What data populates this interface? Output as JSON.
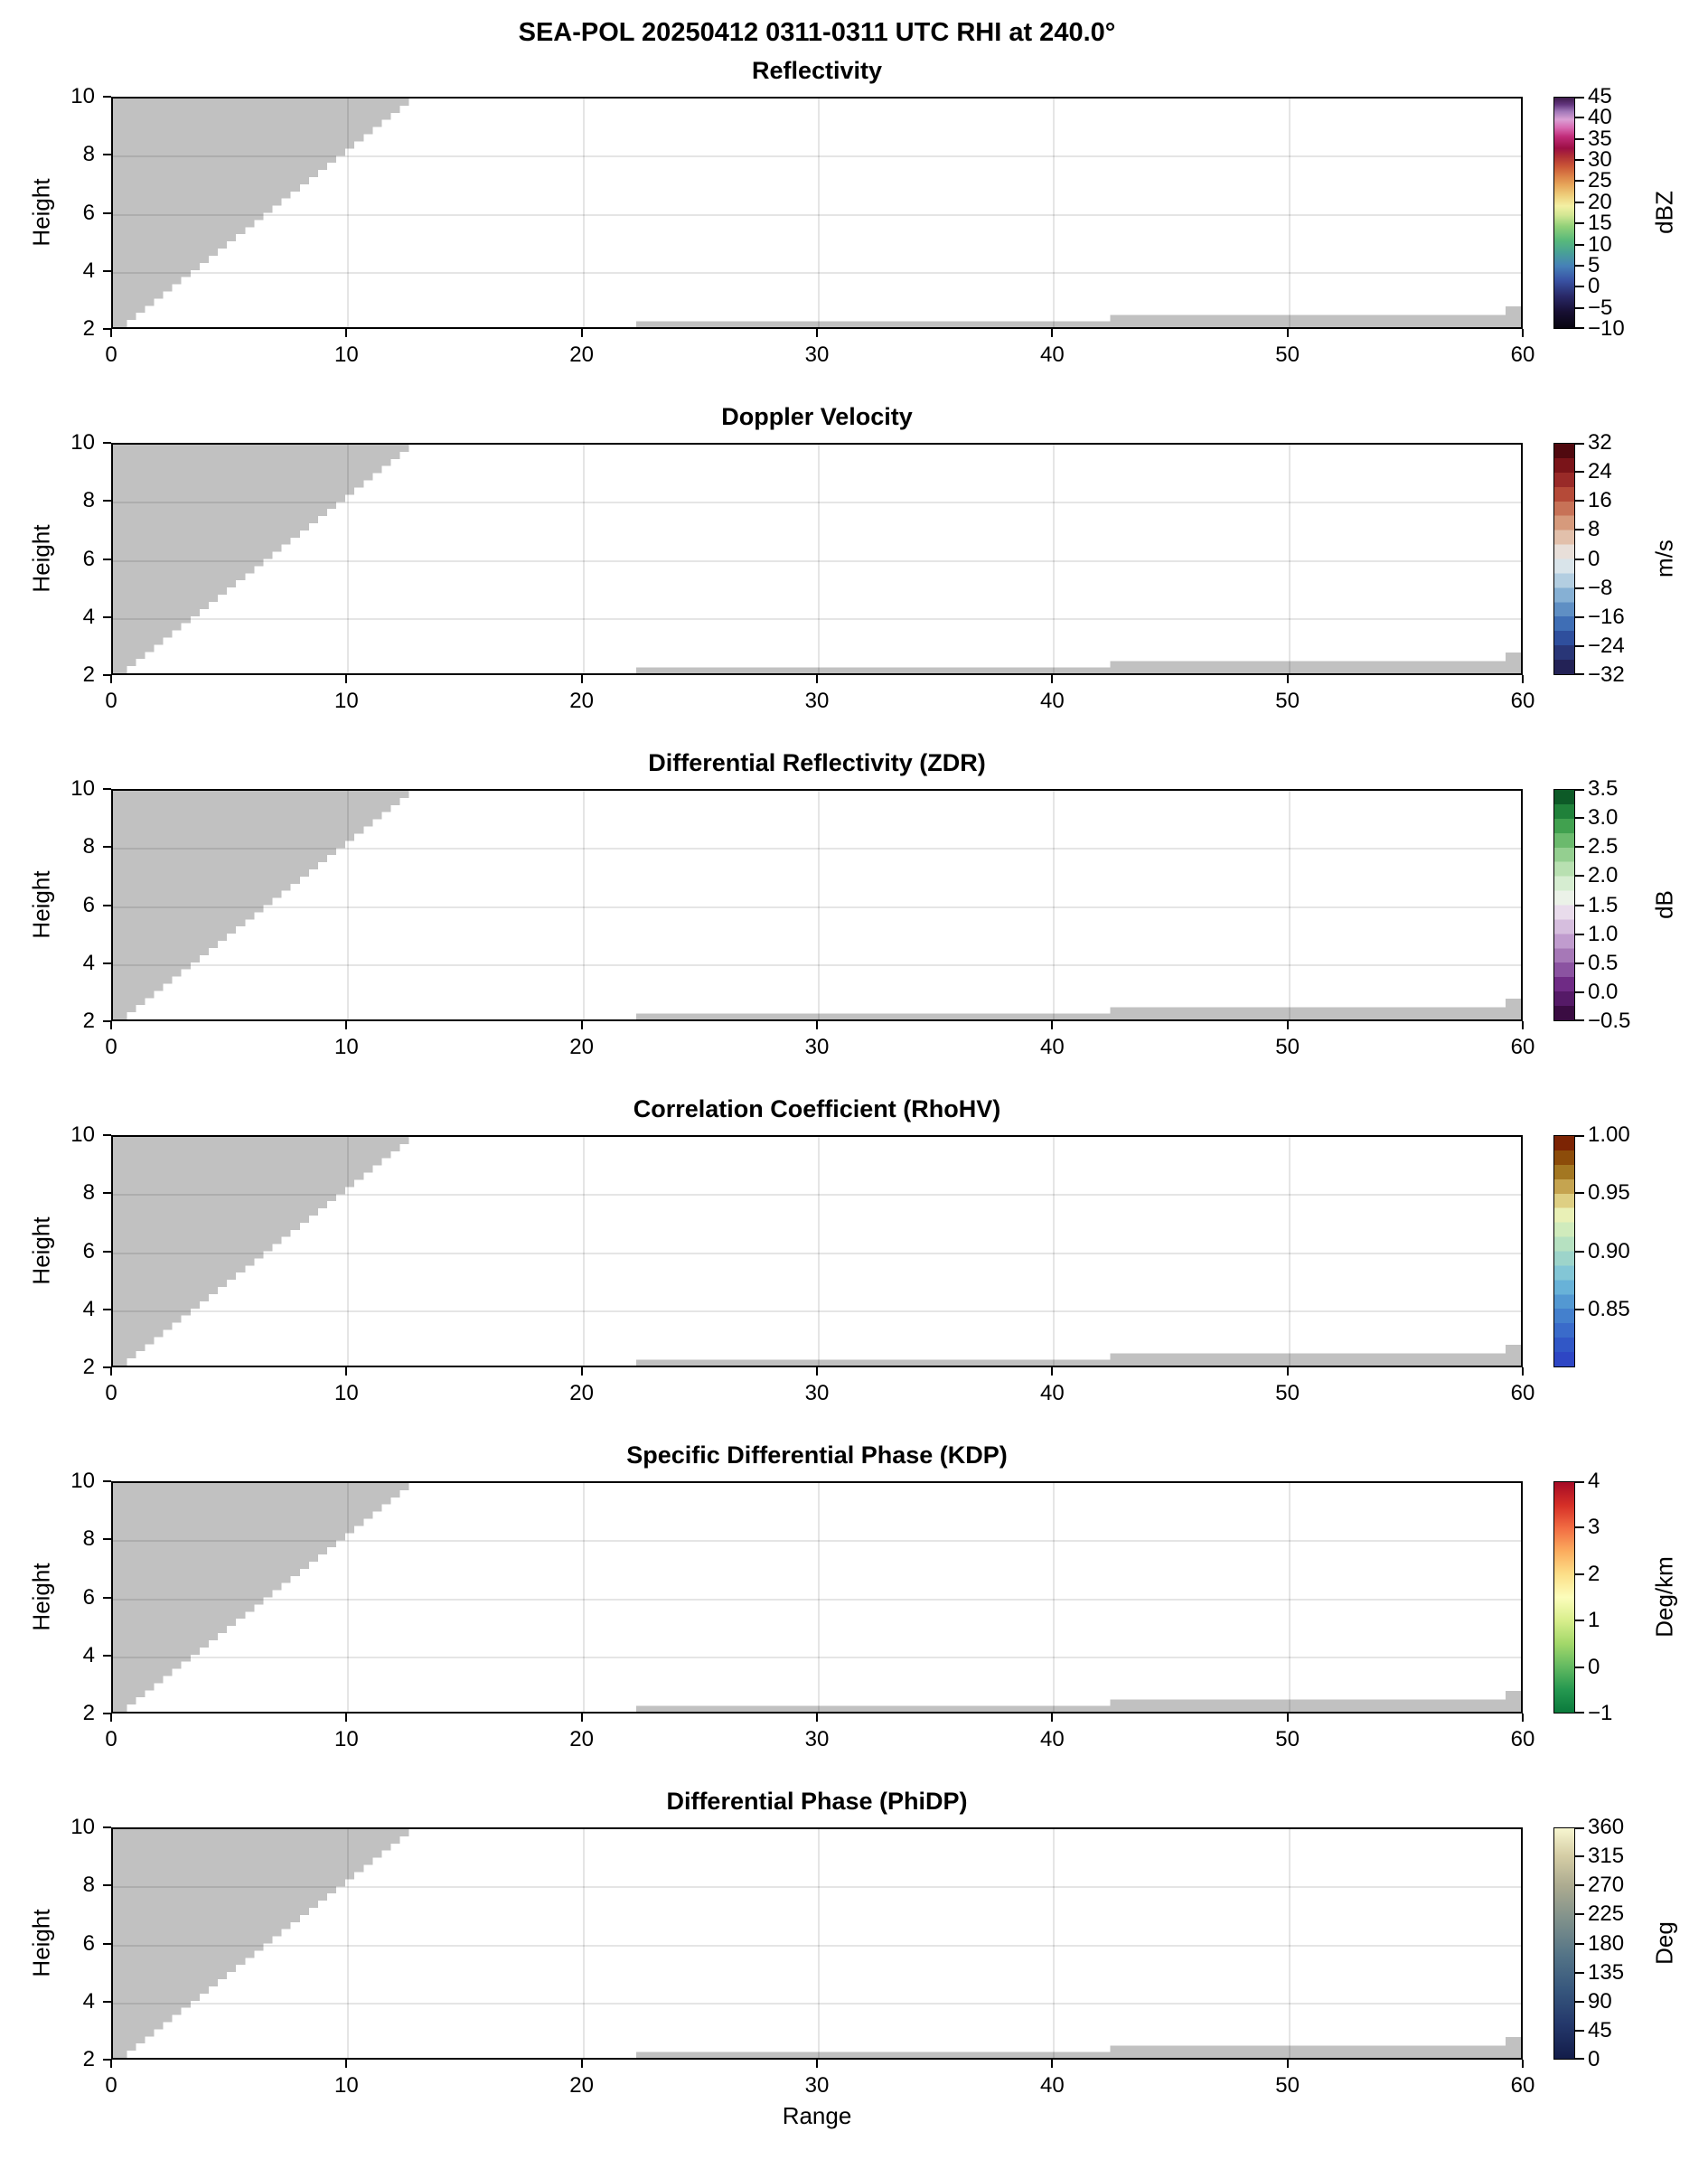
{
  "figure": {
    "title": "SEA-POL 20250412 0311-0311 UTC RHI at 240.0°",
    "xlabel": "Range",
    "ylabel": "Height"
  },
  "chart_data": {
    "type": "heatmap",
    "subtype": "radar-rhi-multipanel",
    "title": "SEA-POL 20250412 0311-0311 UTC RHI at 240.0°",
    "xlabel": "Range",
    "ylabel": "Height",
    "xlim": [
      0,
      60
    ],
    "ylim": [
      2,
      10
    ],
    "x_ticks": [
      0,
      10,
      20,
      30,
      40,
      50,
      60
    ],
    "y_ticks": [
      10,
      8,
      6,
      4,
      2
    ],
    "grid": true,
    "no_data_color": "#c1c1c1",
    "mask_regions": {
      "wedge": {
        "x_at_bottom": 0.2,
        "x_at_top": 12.62,
        "y_bottom": 2,
        "y_top": 10,
        "step": 0.25
      },
      "strips": [
        {
          "x0": 22.3,
          "x1": 42.5,
          "y0": 2,
          "y1": 2.2
        },
        {
          "x0": 42.5,
          "x1": 60.0,
          "y0": 2,
          "y1": 2.42
        },
        {
          "x0": 59.35,
          "x1": 60.0,
          "y0": 2,
          "y1": 2.72
        }
      ]
    },
    "panels": [
      {
        "title": "Reflectivity",
        "unit": "dBZ",
        "vmin": -10,
        "vmax": 45,
        "cb_ticks": [
          {
            "v": 45,
            "label": "45"
          },
          {
            "v": 40,
            "label": "40"
          },
          {
            "v": 35,
            "label": "35"
          },
          {
            "v": 30,
            "label": "30"
          },
          {
            "v": 25,
            "label": "25"
          },
          {
            "v": 20,
            "label": "20"
          },
          {
            "v": 15,
            "label": "15"
          },
          {
            "v": 10,
            "label": "10"
          },
          {
            "v": 5,
            "label": "5"
          },
          {
            "v": 0,
            "label": "0"
          },
          {
            "v": -5,
            "label": "−5"
          },
          {
            "v": -10,
            "label": "−10"
          }
        ],
        "cmap": {
          "style": "continuous",
          "stops": [
            {
              "p": 0.0,
              "c": "#08050f"
            },
            {
              "p": 0.07,
              "c": "#170f33"
            },
            {
              "p": 0.14,
              "c": "#292968"
            },
            {
              "p": 0.21,
              "c": "#3a54a6"
            },
            {
              "p": 0.27,
              "c": "#4681b8"
            },
            {
              "p": 0.33,
              "c": "#49a295"
            },
            {
              "p": 0.38,
              "c": "#58b97b"
            },
            {
              "p": 0.44,
              "c": "#90d078"
            },
            {
              "p": 0.49,
              "c": "#d2e793"
            },
            {
              "p": 0.53,
              "c": "#f3f0a3"
            },
            {
              "p": 0.575,
              "c": "#eecf7c"
            },
            {
              "p": 0.62,
              "c": "#e7a75b"
            },
            {
              "p": 0.66,
              "c": "#db8147"
            },
            {
              "p": 0.7,
              "c": "#cb5837"
            },
            {
              "p": 0.745,
              "c": "#b02f35"
            },
            {
              "p": 0.78,
              "c": "#9c0f44"
            },
            {
              "p": 0.83,
              "c": "#c02b78"
            },
            {
              "p": 0.87,
              "c": "#d86ab2"
            },
            {
              "p": 0.905,
              "c": "#daa0d4"
            },
            {
              "p": 0.94,
              "c": "#a077b8"
            },
            {
              "p": 0.97,
              "c": "#62357e"
            },
            {
              "p": 1.0,
              "c": "#3d1b4a"
            }
          ]
        }
      },
      {
        "title": "Doppler Velocity",
        "unit": "m/s",
        "vmin": -32,
        "vmax": 32,
        "cb_ticks": [
          {
            "v": 32,
            "label": "32"
          },
          {
            "v": 24,
            "label": "24"
          },
          {
            "v": 16,
            "label": "16"
          },
          {
            "v": 8,
            "label": "8"
          },
          {
            "v": 0,
            "label": "0"
          },
          {
            "v": -8,
            "label": "−8"
          },
          {
            "v": -16,
            "label": "−16"
          },
          {
            "v": -24,
            "label": "−24"
          },
          {
            "v": -32,
            "label": "−32"
          }
        ],
        "cmap": {
          "style": "discrete",
          "colors": [
            "#232256",
            "#293677",
            "#2f4f9d",
            "#3f6eb5",
            "#5f8fc4",
            "#86b0d4",
            "#b3cee1",
            "#d9e4ea",
            "#e8dfd9",
            "#e2c0ab",
            "#d69a7c",
            "#c77257",
            "#b54a38",
            "#992a28",
            "#7a1419",
            "#50090f"
          ]
        }
      },
      {
        "title": "Differential Reflectivity (ZDR)",
        "unit": "dB",
        "vmin": -0.5,
        "vmax": 3.5,
        "cb_ticks": [
          {
            "v": 3.5,
            "label": "3.5"
          },
          {
            "v": 3.0,
            "label": "3.0"
          },
          {
            "v": 2.5,
            "label": "2.5"
          },
          {
            "v": 2.0,
            "label": "2.0"
          },
          {
            "v": 1.5,
            "label": "1.5"
          },
          {
            "v": 1.0,
            "label": "1.0"
          },
          {
            "v": 0.5,
            "label": "0.5"
          },
          {
            "v": 0.0,
            "label": "0.0"
          },
          {
            "v": -0.5,
            "label": "−0.5"
          }
        ],
        "cmap": {
          "style": "discrete",
          "colors": [
            "#3a0c42",
            "#551a67",
            "#6f2b85",
            "#8b53a1",
            "#a678b7",
            "#c09cce",
            "#d6bede",
            "#e9dcec",
            "#ebf2e8",
            "#d6edd1",
            "#b8e0b1",
            "#94cf90",
            "#6bba6d",
            "#41a14f",
            "#20813a",
            "#0d5a27"
          ]
        }
      },
      {
        "title": "Correlation Coefficient (RhoHV)",
        "unit": "",
        "vmin": 0.8,
        "vmax": 1.0,
        "cb_ticks": [
          {
            "v": 1.0,
            "label": "1.00"
          },
          {
            "v": 0.95,
            "label": "0.95"
          },
          {
            "v": 0.9,
            "label": "0.90"
          },
          {
            "v": 0.85,
            "label": "0.85"
          }
        ],
        "cmap": {
          "style": "discrete",
          "colors": [
            "#2e46c4",
            "#3157c6",
            "#3a6bca",
            "#4480cd",
            "#5398d2",
            "#68b2d8",
            "#83c6d6",
            "#9dd4ca",
            "#b6e1c1",
            "#d0ebbc",
            "#e9f0b6",
            "#decf83",
            "#c5a450",
            "#a37722",
            "#8c4c0a",
            "#7c2404"
          ]
        }
      },
      {
        "title": "Specific Differential Phase (KDP)",
        "unit": "Deg/km",
        "vmin": -1,
        "vmax": 4,
        "cb_ticks": [
          {
            "v": 4,
            "label": "4"
          },
          {
            "v": 3,
            "label": "3"
          },
          {
            "v": 2,
            "label": "2"
          },
          {
            "v": 1,
            "label": "1"
          },
          {
            "v": 0,
            "label": "0"
          },
          {
            "v": -1,
            "label": "−1"
          }
        ],
        "cmap": {
          "style": "continuous",
          "stops": [
            {
              "p": 0.0,
              "c": "#0a7a3c"
            },
            {
              "p": 0.1,
              "c": "#259850"
            },
            {
              "p": 0.2,
              "c": "#63ba61"
            },
            {
              "p": 0.3,
              "c": "#a3d86a"
            },
            {
              "p": 0.4,
              "c": "#d8ee8c"
            },
            {
              "p": 0.5,
              "c": "#fcfdbb"
            },
            {
              "p": 0.6,
              "c": "#fcdf88"
            },
            {
              "p": 0.7,
              "c": "#fbac5e"
            },
            {
              "p": 0.8,
              "c": "#f26d43"
            },
            {
              "p": 0.9,
              "c": "#d62f27"
            },
            {
              "p": 1.0,
              "c": "#a50b26"
            }
          ]
        }
      },
      {
        "title": "Differential Phase (PhiDP)",
        "unit": "Deg",
        "vmin": 0,
        "vmax": 360,
        "cb_ticks": [
          {
            "v": 360,
            "label": "360"
          },
          {
            "v": 315,
            "label": "315"
          },
          {
            "v": 270,
            "label": "270"
          },
          {
            "v": 225,
            "label": "225"
          },
          {
            "v": 180,
            "label": "180"
          },
          {
            "v": 135,
            "label": "135"
          },
          {
            "v": 90,
            "label": "90"
          },
          {
            "v": 45,
            "label": "45"
          },
          {
            "v": 0,
            "label": "0"
          }
        ],
        "cmap": {
          "style": "continuous",
          "stops": [
            {
              "p": 0.0,
              "c": "#131c49"
            },
            {
              "p": 0.15,
              "c": "#24386b"
            },
            {
              "p": 0.3,
              "c": "#37577d"
            },
            {
              "p": 0.45,
              "c": "#547487"
            },
            {
              "p": 0.6,
              "c": "#7e908b"
            },
            {
              "p": 0.75,
              "c": "#acab90"
            },
            {
              "p": 0.88,
              "c": "#d5cda5"
            },
            {
              "p": 1.0,
              "c": "#f7f6d0"
            }
          ]
        }
      }
    ]
  }
}
